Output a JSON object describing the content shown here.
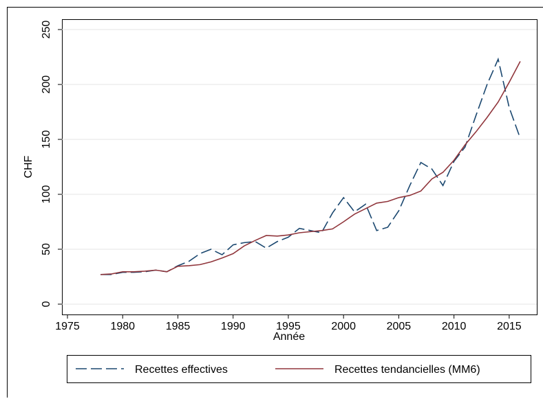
{
  "chart_data": {
    "type": "line",
    "x_label": "Année",
    "y_label": "CHF",
    "x": [
      1978,
      1979,
      1980,
      1981,
      1982,
      1983,
      1984,
      1985,
      1986,
      1987,
      1988,
      1989,
      1990,
      1991,
      1992,
      1993,
      1994,
      1995,
      1996,
      1997,
      1998,
      1999,
      2000,
      2001,
      2002,
      2003,
      2004,
      2005,
      2006,
      2007,
      2008,
      2009,
      2010,
      2011,
      2012,
      2013,
      2014,
      2015,
      2016
    ],
    "series": [
      {
        "name": "Recettes effectives",
        "color": "#1a476f",
        "dash": true,
        "values": [
          27,
          27,
          29,
          29,
          29.5,
          31,
          29.5,
          35,
          39,
          46,
          50,
          45,
          54,
          56,
          57,
          51,
          57,
          61,
          69,
          67,
          65,
          83,
          97,
          84,
          91,
          67,
          70,
          85,
          108,
          129,
          123,
          108,
          130,
          143,
          172,
          200,
          223,
          179,
          151
        ]
      },
      {
        "name": "Recettes tendancielles (MM6)",
        "color": "#90353b",
        "dash": false,
        "values": [
          27,
          27.5,
          29.5,
          29.5,
          30,
          31,
          29.5,
          34.5,
          35,
          36,
          38.5,
          42,
          46,
          53,
          58,
          62.5,
          62,
          63,
          65,
          66,
          67,
          68.5,
          75,
          82,
          87,
          92,
          93.5,
          97,
          99,
          103,
          114,
          120,
          131,
          145,
          157,
          170,
          184,
          202,
          221
        ]
      }
    ],
    "xlim": [
      1974.5,
      2017.5
    ],
    "xticks": [
      1975,
      1980,
      1985,
      1990,
      1995,
      2000,
      2005,
      2010,
      2015
    ],
    "ylim": [
      -9.4,
      259.4
    ],
    "yticks": [
      0,
      50,
      100,
      150,
      200,
      250
    ],
    "grid": true,
    "legend_position": "bottom"
  }
}
